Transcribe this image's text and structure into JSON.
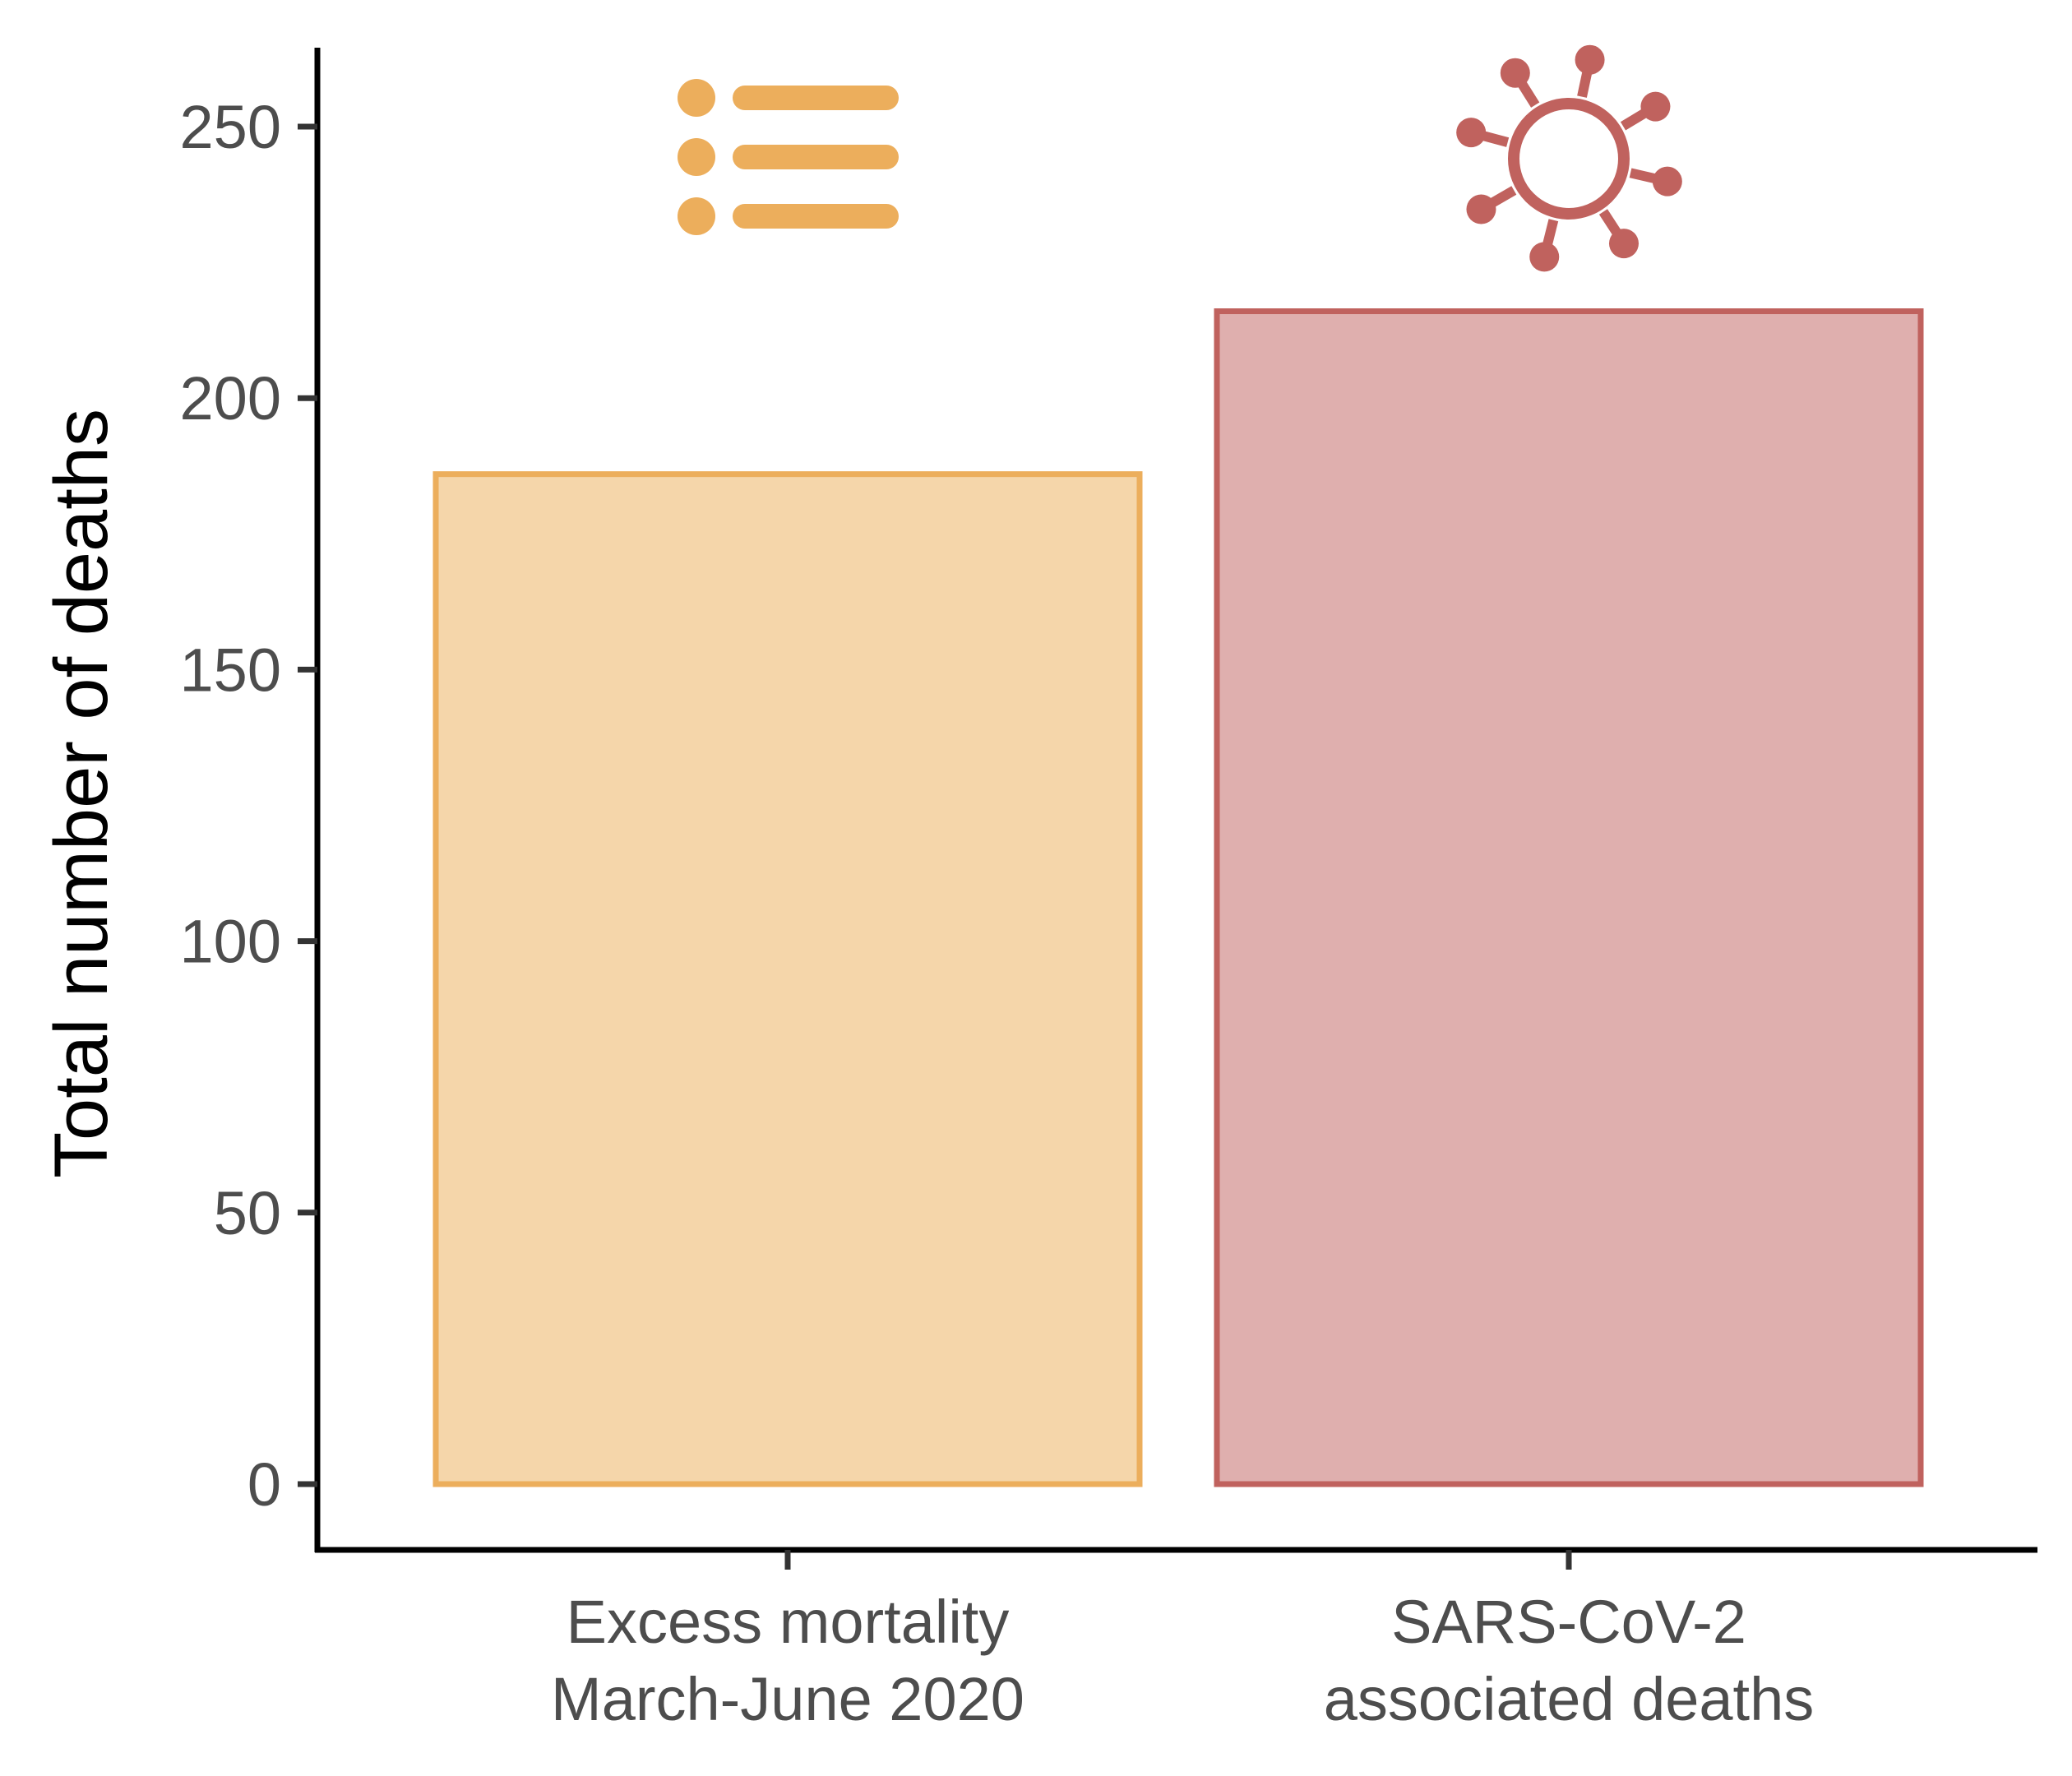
{
  "chart_data": {
    "type": "bar",
    "title": "",
    "xlabel": "",
    "ylabel": "Total number of deaths",
    "ylim": [
      -12,
      263
    ],
    "yticks": [
      0,
      50,
      100,
      150,
      200,
      250
    ],
    "categories": [
      {
        "line1": "Excess mortality",
        "line2": "March-June 2020"
      },
      {
        "line1": "SARS-CoV-2",
        "line2": "associated deaths"
      }
    ],
    "values": [
      186,
      216
    ],
    "grid": false,
    "legend": "none"
  },
  "colors": {
    "excess_fill": "#f5d6aa",
    "excess_stroke": "#ecae5c",
    "sars_fill": "#dfafae",
    "sars_stroke": "#c0625e",
    "axis": "#000000",
    "tick_text": "#4d4d4d"
  },
  "icons": {
    "excess": "list-icon",
    "sars": "virus-icon"
  }
}
